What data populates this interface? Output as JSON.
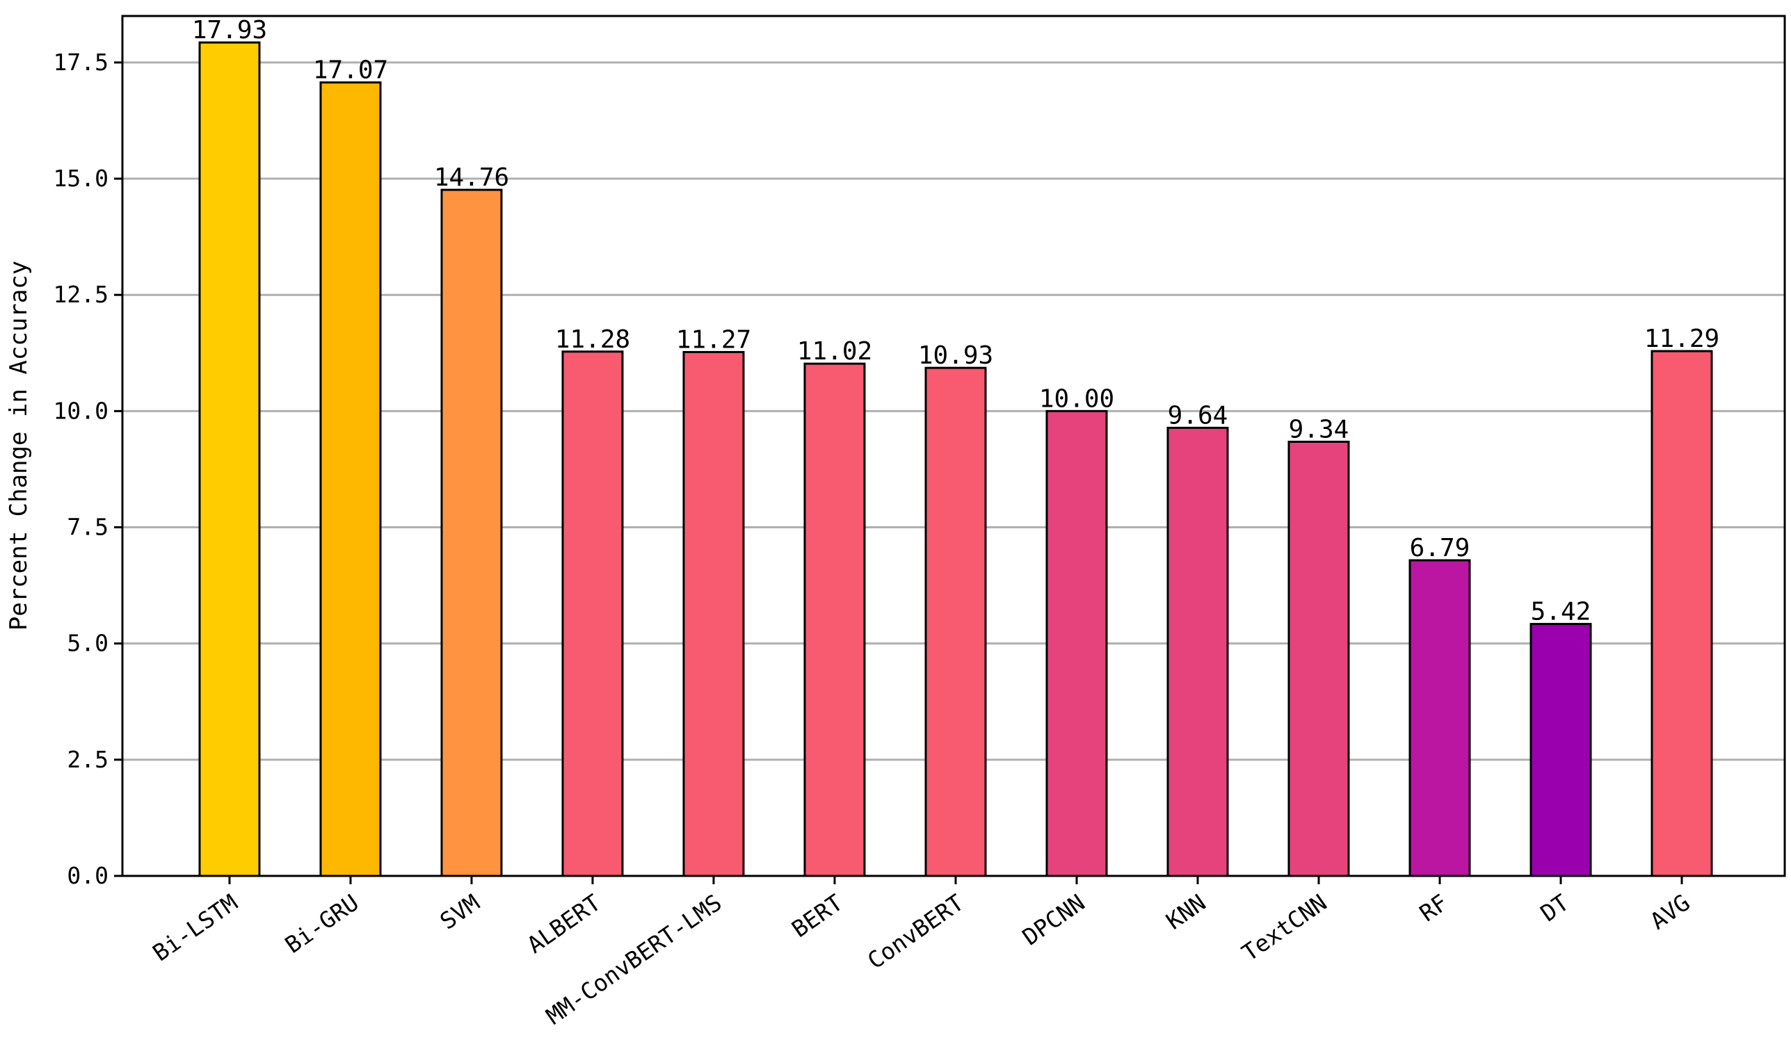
{
  "chart_data": {
    "type": "bar",
    "title": "",
    "xlabel": "",
    "ylabel": "Percent Change in Accuracy",
    "categories": [
      "Bi-LSTM",
      "Bi-GRU",
      "SVM",
      "ALBERT",
      "MM-ConvBERT-LMS",
      "BERT",
      "ConvBERT",
      "DPCNN",
      "KNN",
      "TextCNN",
      "RF",
      "DT",
      "AVG"
    ],
    "values": [
      17.93,
      17.07,
      14.76,
      11.28,
      11.27,
      11.02,
      10.93,
      10.0,
      9.64,
      9.34,
      6.79,
      5.42,
      11.29
    ],
    "value_labels": [
      "17.93",
      "17.07",
      "14.76",
      "11.28",
      "11.27",
      "11.02",
      "10.93",
      "10.00",
      "9.64",
      "9.34",
      "6.79",
      "5.42",
      "11.29"
    ],
    "colors": [
      "#FFCC00",
      "#FFB800",
      "#FF9340",
      "#F85A6F",
      "#F85A6F",
      "#F85A6F",
      "#F85A6F",
      "#E6437D",
      "#E6437D",
      "#E6437D",
      "#BA16A1",
      "#9A00AE",
      "#F85A6F"
    ],
    "yticks": [
      "0.0",
      "2.5",
      "5.0",
      "7.5",
      "10.0",
      "12.5",
      "15.0",
      "17.5"
    ],
    "ylim": [
      0,
      18.5
    ],
    "grid": "horizontal",
    "legend": "none"
  }
}
